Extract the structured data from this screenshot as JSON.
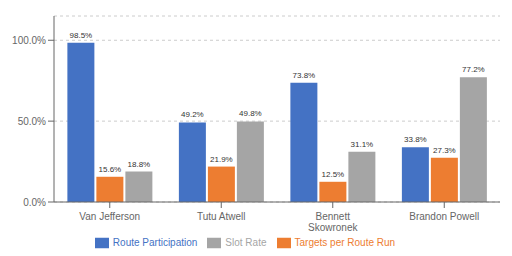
{
  "chart_data": {
    "type": "bar",
    "categories": [
      "Van Jefferson",
      "Tutu Atwell",
      "Bennett\nSkowronek",
      "Brandon Powell"
    ],
    "series": [
      {
        "name": "Route Participation",
        "color": "#4472C4",
        "values": [
          98.5,
          49.2,
          73.8,
          33.8
        ],
        "value_labels": [
          "98.5%",
          "49.2%",
          "73.8%",
          "33.8%"
        ]
      },
      {
        "name": "Targets per Route Run",
        "color": "#ED7D31",
        "values": [
          15.6,
          21.9,
          12.5,
          27.3
        ],
        "value_labels": [
          "15.6%",
          "21.9%",
          "12.5%",
          "27.3%"
        ]
      },
      {
        "name": "Slot Rate",
        "color": "#A5A5A5",
        "values": [
          18.8,
          49.8,
          31.1,
          77.2
        ],
        "value_labels": [
          "18.8%",
          "49.8%",
          "31.1%",
          "77.2%"
        ]
      }
    ],
    "ylim": [
      0,
      115
    ],
    "yticks": [
      {
        "value": 0,
        "label": "0.0%"
      },
      {
        "value": 50,
        "label": "50.0%"
      },
      {
        "value": 100,
        "label": "100.0%"
      }
    ],
    "grid": true,
    "legend": "bottom",
    "data_labels": true
  }
}
